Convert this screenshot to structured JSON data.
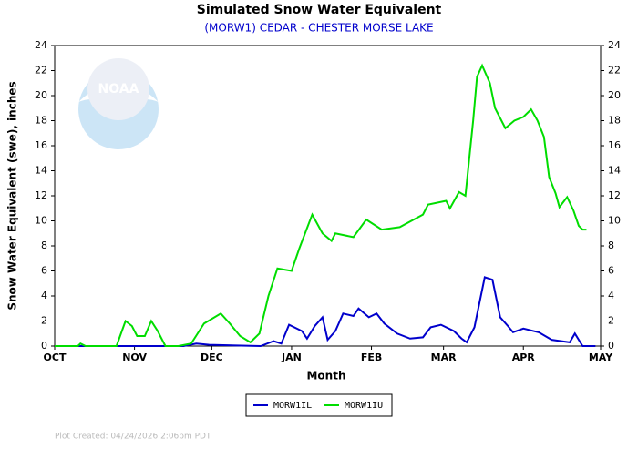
{
  "chart_data": {
    "type": "line",
    "title": "Simulated Snow Water Equivalent",
    "subtitle": "(MORW1) CEDAR - CHESTER MORSE LAKE",
    "x_label": "Month",
    "y_label": "Snow Water Equivalent (swe),  inches",
    "logo_text": "NOAA",
    "footer": "Plot Created: 04/24/2026 2:06pm PDT",
    "xlim": [
      0,
      212
    ],
    "xticks": [
      {
        "value": 0,
        "label": "OCT"
      },
      {
        "value": 31,
        "label": "NOV"
      },
      {
        "value": 61,
        "label": "DEC"
      },
      {
        "value": 92,
        "label": "JAN"
      },
      {
        "value": 123,
        "label": "FEB"
      },
      {
        "value": 151,
        "label": "MAR"
      },
      {
        "value": 182,
        "label": "APR"
      },
      {
        "value": 212,
        "label": "MAY"
      }
    ],
    "ylim": [
      0,
      24
    ],
    "yticks": [
      0,
      2,
      4,
      6,
      8,
      10,
      12,
      14,
      16,
      18,
      20,
      22,
      24
    ],
    "grid": false,
    "legend": "bottom",
    "series": [
      {
        "name": "MORW1IL",
        "color": "#0000cc",
        "x": [
          0,
          50,
          55,
          60,
          80,
          85,
          88,
          91,
          96,
          98,
          101,
          104,
          106,
          109,
          112,
          116,
          118,
          122,
          125,
          128,
          133,
          138,
          143,
          146,
          150,
          155,
          158,
          160,
          163,
          165,
          167,
          170,
          173,
          176,
          178,
          182,
          188,
          193,
          200,
          202,
          205,
          210
        ],
        "values": [
          0,
          0,
          0.2,
          0.1,
          0,
          0.4,
          0.2,
          1.7,
          1.2,
          0.6,
          1.6,
          2.3,
          0.5,
          1.2,
          2.6,
          2.4,
          3.0,
          2.3,
          2.6,
          1.8,
          1.0,
          0.6,
          0.7,
          1.5,
          1.7,
          1.2,
          0.6,
          0.3,
          1.5,
          3.5,
          5.5,
          5.3,
          2.3,
          1.6,
          1.1,
          1.4,
          1.1,
          0.5,
          0.3,
          1.0,
          0,
          0
        ]
      },
      {
        "name": "MORW1IU",
        "color": "#00dd00",
        "x": [
          0,
          9,
          10,
          12,
          24,
          27.5,
          30,
          32,
          35,
          37.5,
          40,
          43,
          48,
          53,
          58,
          64.5,
          68,
          72,
          76,
          79.5,
          83,
          86.5,
          92,
          95,
          100,
          104,
          107.5,
          109,
          116,
          121,
          127,
          134,
          143,
          145,
          152,
          153.5,
          157,
          159.5,
          162.5,
          164,
          166,
          169,
          171,
          175,
          178.5,
          182,
          185,
          187.5,
          190,
          192,
          194.5,
          196,
          199,
          201.5,
          203.5,
          205,
          206.5
        ],
        "values": [
          0,
          0,
          0.2,
          0,
          0,
          2.0,
          1.6,
          0.8,
          0.8,
          2.0,
          1.2,
          0,
          0,
          0.2,
          1.8,
          2.6,
          1.8,
          0.8,
          0.3,
          1.0,
          4.0,
          6.2,
          6.0,
          7.8,
          10.5,
          9.0,
          8.4,
          9.0,
          8.7,
          10.1,
          9.3,
          9.5,
          10.5,
          11.3,
          11.6,
          11.0,
          12.3,
          12.0,
          18.0,
          21.5,
          22.4,
          21.0,
          19.0,
          17.4,
          18.0,
          18.3,
          18.9,
          18.0,
          16.7,
          13.5,
          12.2,
          11.1,
          11.9,
          10.8,
          9.6,
          9.3,
          9.3
        ]
      }
    ]
  }
}
